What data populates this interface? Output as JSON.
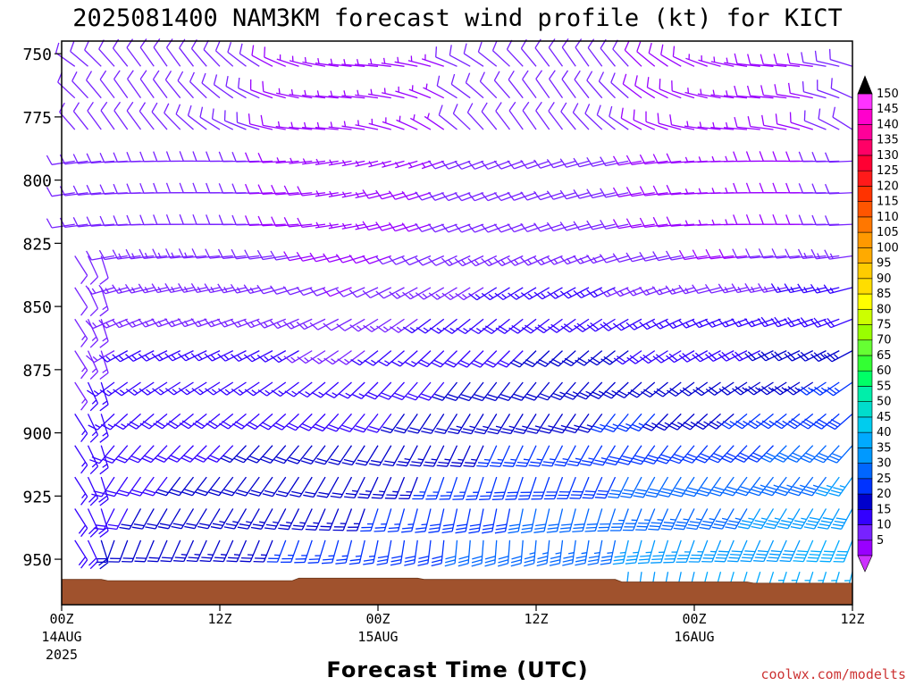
{
  "page": {
    "title": "2025081400 NAM3KM forecast wind profile (kt) for KICT",
    "credit": "coolwx.com/modelts",
    "credit_color": "#cc3333"
  },
  "chart_data": {
    "type": "wind-barb-profile",
    "title": "2025081400 NAM3KM forecast wind profile (kt) for KICT",
    "xlabel": "Forecast Time (UTC)",
    "ylabel": "",
    "x_ticks": [
      {
        "hour": 0,
        "label": "00Z",
        "date": "14AUG",
        "year": "2025"
      },
      {
        "hour": 12,
        "label": "12Z",
        "date": "",
        "year": ""
      },
      {
        "hour": 24,
        "label": "00Z",
        "date": "15AUG",
        "year": ""
      },
      {
        "hour": 36,
        "label": "12Z",
        "date": "",
        "year": ""
      },
      {
        "hour": 48,
        "label": "00Z",
        "date": "16AUG",
        "year": ""
      },
      {
        "hour": 60,
        "label": "12Z",
        "date": "",
        "year": ""
      }
    ],
    "xlim": [
      0,
      60
    ],
    "y_ticks": [
      750,
      775,
      800,
      825,
      850,
      875,
      900,
      925,
      950
    ],
    "ylim": [
      745,
      968
    ],
    "y_reversed": true,
    "grid": false,
    "terrain_color": "#a0522d",
    "surface_pressure": [
      {
        "hour": 0,
        "p": 958
      },
      {
        "hour": 3,
        "p": 958
      },
      {
        "hour": 3.5,
        "p": 958.5
      },
      {
        "hour": 17.5,
        "p": 958.5
      },
      {
        "hour": 18,
        "p": 957.5
      },
      {
        "hour": 27,
        "p": 957.5
      },
      {
        "hour": 27.5,
        "p": 958
      },
      {
        "hour": 42,
        "p": 958
      },
      {
        "hour": 42.5,
        "p": 959
      },
      {
        "hour": 52,
        "p": 959
      },
      {
        "hour": 52.5,
        "p": 959.5
      },
      {
        "hour": 60,
        "p": 959.5
      }
    ],
    "barbs_sampling": {
      "hour_step": 1,
      "pressure_step": 12.5,
      "top_pressure": 755
    },
    "wind_field_description_samples": [
      {
        "hour": 0,
        "p": 950,
        "speed_kt": 12,
        "dir_deg": 140
      },
      {
        "hour": 12,
        "p": 925,
        "speed_kt": 22,
        "dir_deg": 180
      },
      {
        "hour": 30,
        "p": 925,
        "speed_kt": 32,
        "dir_deg": 190
      },
      {
        "hour": 56,
        "p": 925,
        "speed_kt": 42,
        "dir_deg": 200
      },
      {
        "hour": 30,
        "p": 825,
        "speed_kt": 22,
        "dir_deg": 250
      },
      {
        "hour": 20,
        "p": 780,
        "speed_kt": 8,
        "dir_deg": 320
      }
    ],
    "colorbar": {
      "levels": [
        5,
        10,
        15,
        20,
        25,
        30,
        35,
        40,
        45,
        50,
        55,
        60,
        65,
        70,
        75,
        80,
        85,
        90,
        95,
        100,
        105,
        110,
        115,
        120,
        125,
        130,
        135,
        140,
        145,
        150
      ],
      "colors": [
        "#9900ff",
        "#7722ff",
        "#3300ff",
        "#0000cc",
        "#0033ff",
        "#0066ff",
        "#0099ff",
        "#00aaff",
        "#00ccee",
        "#00ddcc",
        "#00eeaa",
        "#00ff66",
        "#33ff33",
        "#66ff33",
        "#99ff00",
        "#ccff00",
        "#ffff00",
        "#ffdd00",
        "#ffcc00",
        "#ffaa00",
        "#ff9900",
        "#ff7700",
        "#ff5500",
        "#ff3300",
        "#ff1a1a",
        "#ff0033",
        "#ff0066",
        "#ff0099",
        "#ff00cc",
        "#ff33ff"
      ],
      "over_color": "#000000",
      "under_color": "#cc33ff"
    }
  }
}
